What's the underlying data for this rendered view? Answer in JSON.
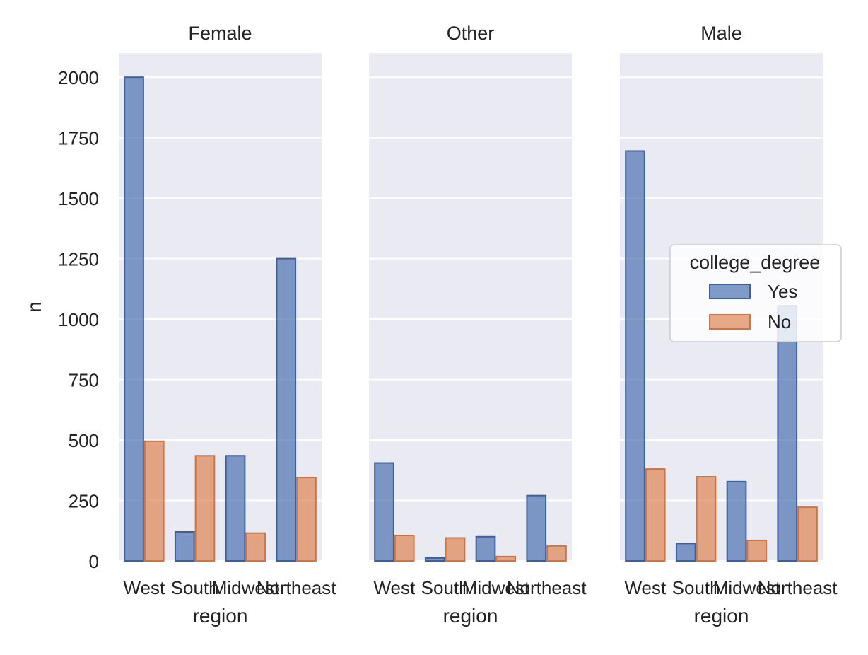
{
  "chart_data": {
    "type": "bar",
    "facet_by": "gender",
    "xlabel": "region",
    "ylabel": "n",
    "ylim": [
      0,
      2100
    ],
    "yticks": [
      0,
      250,
      500,
      750,
      1000,
      1250,
      1500,
      1750,
      2000
    ],
    "categories": [
      "West",
      "South",
      "Midwest",
      "Northeast"
    ],
    "grid": true,
    "legend": {
      "title": "college_degree",
      "placement": "right",
      "entries": [
        "Yes",
        "No"
      ]
    },
    "colors": {
      "Yes": "#4c72b0",
      "No": "#dd8452",
      "background": "#eaeaf2",
      "grid": "#ffffff"
    },
    "panels": [
      {
        "title": "Female",
        "series": [
          {
            "name": "Yes",
            "values": [
              2000,
              120,
              435,
              1250
            ]
          },
          {
            "name": "No",
            "values": [
              495,
              435,
              115,
              345
            ]
          }
        ]
      },
      {
        "title": "Other",
        "series": [
          {
            "name": "Yes",
            "values": [
              405,
              12,
              100,
              270
            ]
          },
          {
            "name": "No",
            "values": [
              105,
              95,
              18,
              62
            ]
          }
        ]
      },
      {
        "title": "Male",
        "series": [
          {
            "name": "Yes",
            "values": [
              1695,
              72,
              328,
              1055
            ]
          },
          {
            "name": "No",
            "values": [
              380,
              348,
              85,
              222
            ]
          }
        ]
      }
    ]
  }
}
